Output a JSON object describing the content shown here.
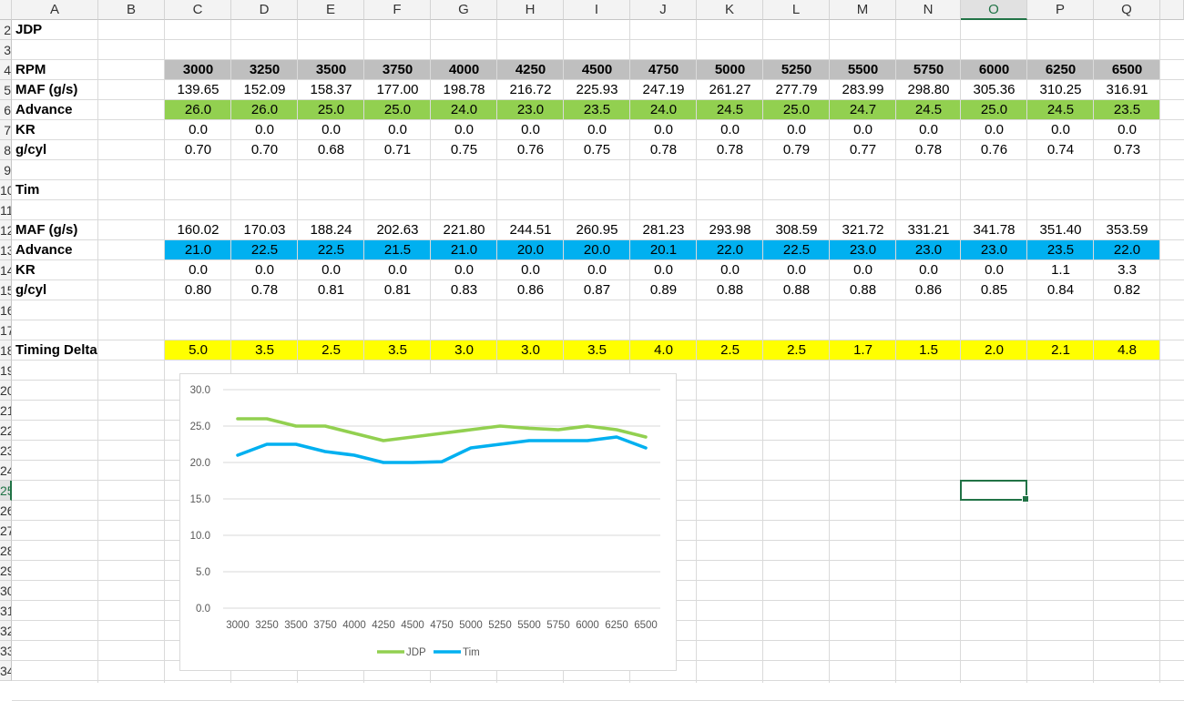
{
  "columns": [
    "A",
    "B",
    "C",
    "D",
    "E",
    "F",
    "G",
    "H",
    "I",
    "J",
    "K",
    "L",
    "M",
    "N",
    "O",
    "P",
    "Q"
  ],
  "selected_column": "O",
  "row_numbers": [
    "2",
    "3",
    "4",
    "5",
    "6",
    "7",
    "8",
    "9",
    "10",
    "11",
    "12",
    "13",
    "14",
    "15",
    "16",
    "17",
    "18",
    "19",
    "20",
    "21",
    "22",
    "23",
    "24",
    "25",
    "26",
    "27",
    "28",
    "29",
    "30",
    "31",
    "32",
    "33",
    "34"
  ],
  "selected_row": "25",
  "colors": {
    "gray": "#bfbfbf",
    "green": "#92d050",
    "blue": "#00b0f0",
    "yellow": "#ffff00",
    "excel_green": "#217346",
    "line_jdp": "#92d050",
    "line_tim": "#00b0f0"
  },
  "table": {
    "jdp_title": "JDP",
    "tim_title": "Tim",
    "rpm": {
      "label": "RPM",
      "values": [
        "3000",
        "3250",
        "3500",
        "3750",
        "4000",
        "4250",
        "4500",
        "4750",
        "5000",
        "5250",
        "5500",
        "5750",
        "6000",
        "6250",
        "6500"
      ]
    },
    "jdp_maf": {
      "label": "MAF (g/s)",
      "values": [
        "139.65",
        "152.09",
        "158.37",
        "177.00",
        "198.78",
        "216.72",
        "225.93",
        "247.19",
        "261.27",
        "277.79",
        "283.99",
        "298.80",
        "305.36",
        "310.25",
        "316.91"
      ]
    },
    "jdp_advance": {
      "label": "Advance",
      "values": [
        "26.0",
        "26.0",
        "25.0",
        "25.0",
        "24.0",
        "23.0",
        "23.5",
        "24.0",
        "24.5",
        "25.0",
        "24.7",
        "24.5",
        "25.0",
        "24.5",
        "23.5"
      ]
    },
    "jdp_kr": {
      "label": "KR",
      "values": [
        "0.0",
        "0.0",
        "0.0",
        "0.0",
        "0.0",
        "0.0",
        "0.0",
        "0.0",
        "0.0",
        "0.0",
        "0.0",
        "0.0",
        "0.0",
        "0.0",
        "0.0"
      ]
    },
    "jdp_gcyl": {
      "label": "g/cyl",
      "values": [
        "0.70",
        "0.70",
        "0.68",
        "0.71",
        "0.75",
        "0.76",
        "0.75",
        "0.78",
        "0.78",
        "0.79",
        "0.77",
        "0.78",
        "0.76",
        "0.74",
        "0.73"
      ]
    },
    "tim_maf": {
      "label": "MAF (g/s)",
      "values": [
        "160.02",
        "170.03",
        "188.24",
        "202.63",
        "221.80",
        "244.51",
        "260.95",
        "281.23",
        "293.98",
        "308.59",
        "321.72",
        "331.21",
        "341.78",
        "351.40",
        "353.59"
      ]
    },
    "tim_advance": {
      "label": "Advance",
      "values": [
        "21.0",
        "22.5",
        "22.5",
        "21.5",
        "21.0",
        "20.0",
        "20.0",
        "20.1",
        "22.0",
        "22.5",
        "23.0",
        "23.0",
        "23.0",
        "23.5",
        "22.0"
      ]
    },
    "tim_kr": {
      "label": "KR",
      "values": [
        "0.0",
        "0.0",
        "0.0",
        "0.0",
        "0.0",
        "0.0",
        "0.0",
        "0.0",
        "0.0",
        "0.0",
        "0.0",
        "0.0",
        "0.0",
        "1.1",
        "3.3"
      ]
    },
    "tim_gcyl": {
      "label": "g/cyl",
      "values": [
        "0.80",
        "0.78",
        "0.81",
        "0.81",
        "0.83",
        "0.86",
        "0.87",
        "0.89",
        "0.88",
        "0.88",
        "0.88",
        "0.86",
        "0.85",
        "0.84",
        "0.82"
      ]
    },
    "delta": {
      "label": "Timing Delta",
      "values": [
        "5.0",
        "3.5",
        "2.5",
        "3.5",
        "3.0",
        "3.0",
        "3.5",
        "4.0",
        "2.5",
        "2.5",
        "1.7",
        "1.5",
        "2.0",
        "2.1",
        "4.8"
      ]
    }
  },
  "chart_data": {
    "type": "line",
    "title": "",
    "xlabel": "",
    "ylabel": "",
    "x": [
      "3000",
      "3250",
      "3500",
      "3750",
      "4000",
      "4250",
      "4500",
      "4750",
      "5000",
      "5250",
      "5500",
      "5750",
      "6000",
      "6250",
      "6500"
    ],
    "series": [
      {
        "name": "JDP",
        "color": "#92d050",
        "values": [
          26.0,
          26.0,
          25.0,
          25.0,
          24.0,
          23.0,
          23.5,
          24.0,
          24.5,
          25.0,
          24.7,
          24.5,
          25.0,
          24.5,
          23.5
        ]
      },
      {
        "name": "Tim",
        "color": "#00b0f0",
        "values": [
          21.0,
          22.5,
          22.5,
          21.5,
          21.0,
          20.0,
          20.0,
          20.1,
          22.0,
          22.5,
          23.0,
          23.0,
          23.0,
          23.5,
          22.0
        ]
      }
    ],
    "ylim": [
      0,
      30
    ],
    "yticks": [
      "0.0",
      "5.0",
      "10.0",
      "15.0",
      "20.0",
      "25.0",
      "30.0"
    ],
    "grid": true,
    "legend": "bottom"
  }
}
